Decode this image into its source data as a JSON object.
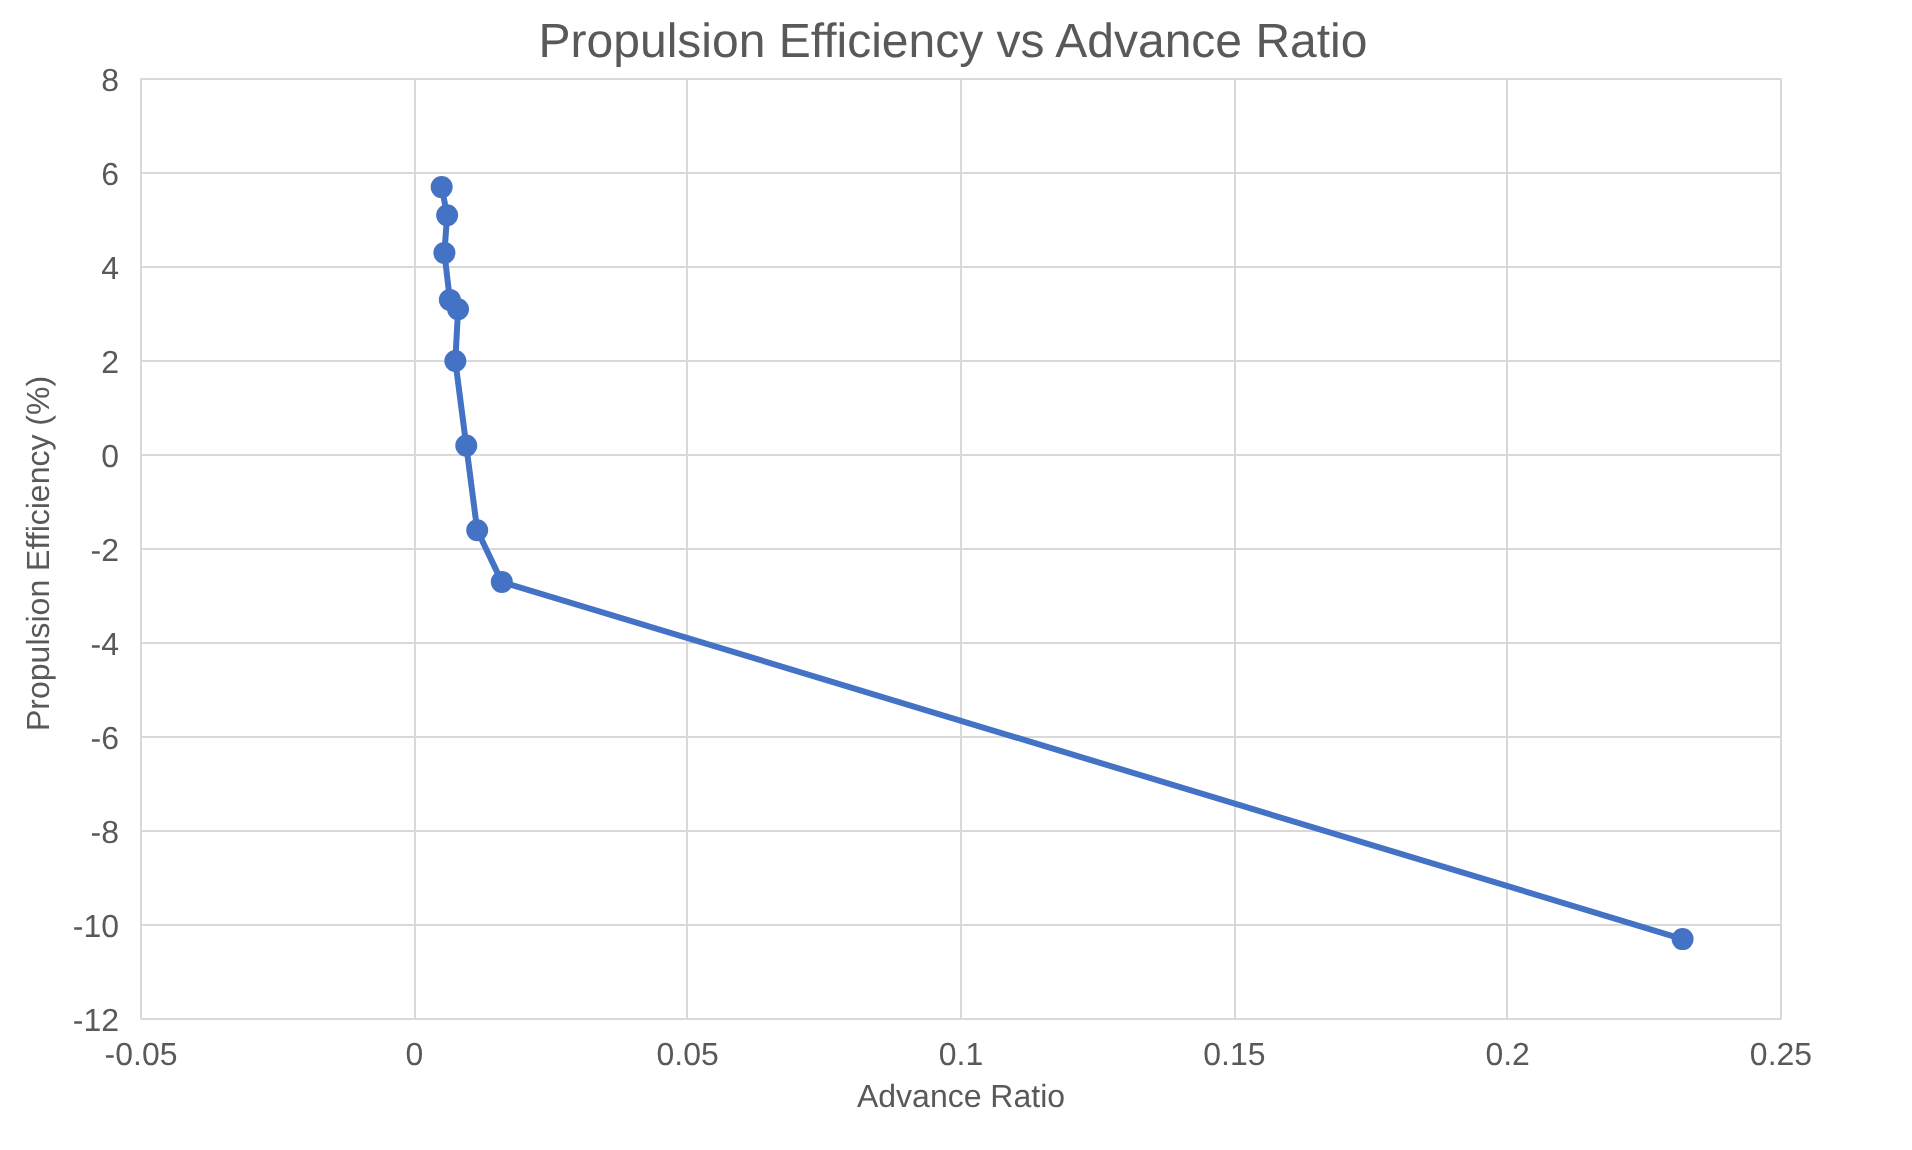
{
  "chart_data": {
    "type": "line",
    "title": "Propulsion  Efficiency vs Advance Ratio",
    "xlabel": "Advance Ratio",
    "ylabel": "Propulsion  Efficiency (%)",
    "x": [
      0.005,
      0.006,
      0.0055,
      0.0065,
      0.008,
      0.0075,
      0.0095,
      0.0115,
      0.016,
      0.232
    ],
    "series": [
      {
        "color": "#4472c4",
        "values": [
          5.7,
          5.1,
          4.3,
          3.3,
          3.1,
          2.0,
          0.2,
          -1.6,
          -2.7,
          -10.3
        ]
      }
    ],
    "xlim": [
      -0.05,
      0.25
    ],
    "xticks": [
      -0.05,
      0,
      0.05,
      0.1,
      0.15,
      0.2,
      0.25
    ],
    "ylim": [
      -12,
      8
    ],
    "yticks": [
      -12,
      -10,
      -8,
      -6,
      -4,
      -2,
      0,
      2,
      4,
      6,
      8
    ],
    "grid": true,
    "marker": "circle",
    "line_style": "solid"
  }
}
